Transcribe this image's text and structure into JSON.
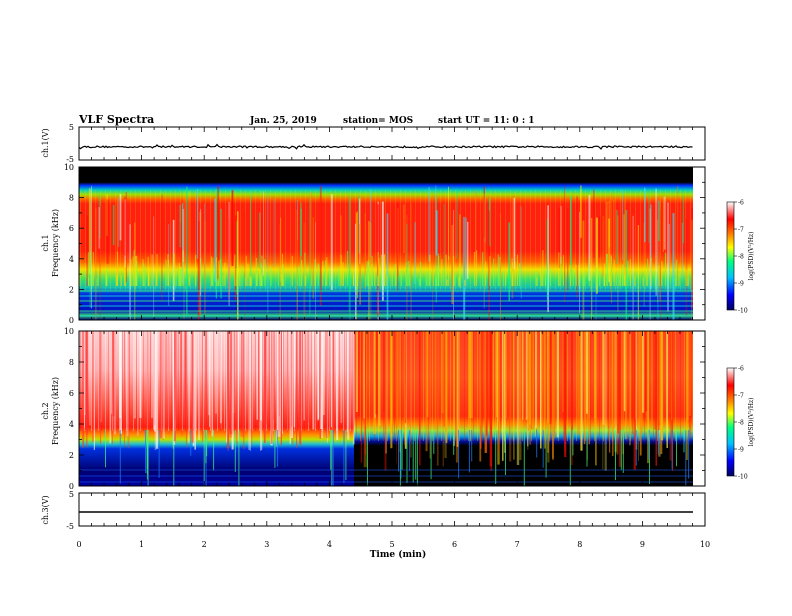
{
  "header": {
    "title": "VLF Spectra",
    "date": "Jan. 25, 2019",
    "station": "station= MOS",
    "start": "start  UT =   11: 0  : 1"
  },
  "panels": {
    "ch1v_label": "ch.1(V)",
    "ch1_label": "ch.1",
    "ch2_label": "ch.2",
    "ch3v_label": "ch.3(V)",
    "freq_label": "Frequency (kHz)",
    "cbar_label": "log(PSD)(V²/Hz)"
  },
  "chart_data": {
    "type": "heatmap",
    "title": "VLF Spectra",
    "xlabel": "Time (min)",
    "xlim": [
      0,
      10
    ],
    "xticks": [
      "0",
      "1",
      "2",
      "3",
      "4",
      "5",
      "6",
      "7",
      "8",
      "9",
      "10"
    ],
    "voltage_ticks": [
      "5",
      "-5"
    ],
    "ch3_voltage_ticks": [
      "5",
      "-5"
    ],
    "freq_ylim": [
      0,
      10
    ],
    "freq_ticks": [
      "0",
      "2",
      "4",
      "6",
      "8",
      "10"
    ],
    "colorbar": {
      "range": [
        -10,
        -6
      ],
      "ticks": [
        "-6",
        "-7",
        "-8",
        "-9",
        "-10"
      ],
      "colors": [
        "#000080",
        "#0000ff",
        "#00c0ff",
        "#00ff80",
        "#ffff00",
        "#ff8000",
        "#ff0000",
        "#ffffff"
      ]
    },
    "ch1_spectrogram": {
      "bands_khz": [
        {
          "from": 0,
          "to": 0.3,
          "level": "green"
        },
        {
          "from": 0.3,
          "to": 2.0,
          "level": "blue"
        },
        {
          "from": 2.0,
          "to": 3.5,
          "level": "green-yellow"
        },
        {
          "from": 3.5,
          "to": 8.0,
          "level": "red"
        },
        {
          "from": 8.0,
          "to": 8.8,
          "level": "green-blue"
        },
        {
          "from": 8.8,
          "to": 10,
          "level": "black"
        }
      ]
    },
    "ch2_spectrogram": {
      "before_4.5min": [
        {
          "from": 0,
          "to": 2.8,
          "level": "blue-black"
        },
        {
          "from": 2.8,
          "to": 3.8,
          "level": "green-yellow"
        },
        {
          "from": 3.8,
          "to": 10,
          "level": "red-white"
        }
      ],
      "after_4.5min": [
        {
          "from": 0,
          "to": 3.0,
          "level": "black"
        },
        {
          "from": 3.0,
          "to": 3.8,
          "level": "blue-green"
        },
        {
          "from": 3.8,
          "to": 10,
          "level": "red-orange"
        }
      ]
    },
    "ch1_voltage_level": -1,
    "ch3_voltage_level": -1
  }
}
